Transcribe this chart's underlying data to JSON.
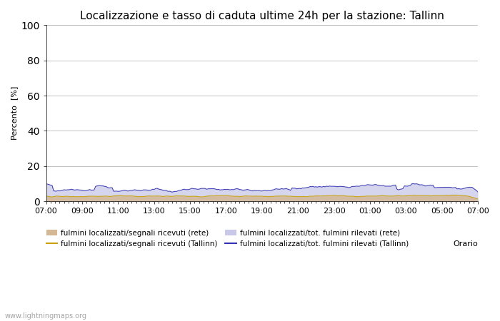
{
  "title": "Localizzazione e tasso di caduta ultime 24h per la stazione: Tallinn",
  "ylabel": "Percento  [%]",
  "xlabel": "Orario",
  "ylim": [
    0,
    100
  ],
  "yticks": [
    0,
    20,
    40,
    60,
    80,
    100
  ],
  "x_labels": [
    "07:00",
    "09:00",
    "11:00",
    "13:00",
    "15:00",
    "17:00",
    "19:00",
    "21:00",
    "23:00",
    "01:00",
    "03:00",
    "05:00",
    "07:00"
  ],
  "n_points": 289,
  "watermark": "www.lightningmaps.org",
  "fill_rete_color": "#d4b896",
  "fill_tallinn_color": "#c8c8e8",
  "line_rete_color": "#c8a000",
  "line_tallinn_color": "#3030b0",
  "bg_color": "#ffffff",
  "grid_color": "#aaaaaa",
  "fill_rete_alpha": 0.85,
  "fill_tallinn_alpha": 0.75,
  "legend_labels": [
    "fulmini localizzati/segnali ricevuti (rete)",
    "fulmini localizzati/segnali ricevuti (Tallinn)",
    "fulmini localizzati/tot. fulmini rilevati (rete)",
    "fulmini localizzati/tot. fulmini rilevati (Tallinn)"
  ],
  "seed": 42
}
